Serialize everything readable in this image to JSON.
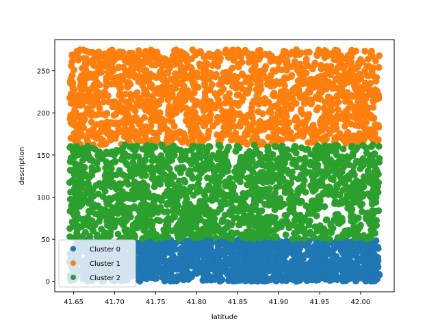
{
  "chart_data": {
    "type": "scatter",
    "title": "",
    "xlabel": "latitude",
    "ylabel": "description",
    "xlim": [
      41.627,
      42.041
    ],
    "ylim": [
      -12.4,
      287
    ],
    "x_ticks": [
      "41.65",
      "41.70",
      "41.75",
      "41.80",
      "41.85",
      "41.90",
      "41.95",
      "42.00"
    ],
    "x_tick_values": [
      41.65,
      41.7,
      41.75,
      41.8,
      41.85,
      41.9,
      41.95,
      42.0
    ],
    "y_ticks": [
      "0",
      "50",
      "100",
      "150",
      "200",
      "250"
    ],
    "y_tick_values": [
      0,
      50,
      100,
      150,
      200,
      250
    ],
    "grid": false,
    "legend_position": "lower-left",
    "series": [
      {
        "name": "Cluster 0",
        "color": "#1f77b4",
        "x_range": [
          41.645,
          42.023
        ],
        "y_range": [
          0,
          50
        ]
      },
      {
        "name": "Cluster 1",
        "color": "#ff7f0e",
        "x_range": [
          41.645,
          42.023
        ],
        "y_range": [
          162,
          275
        ]
      },
      {
        "name": "Cluster 2",
        "color": "#2ca02c",
        "x_range": [
          41.645,
          42.023
        ],
        "y_range": [
          50,
          162
        ]
      }
    ]
  }
}
